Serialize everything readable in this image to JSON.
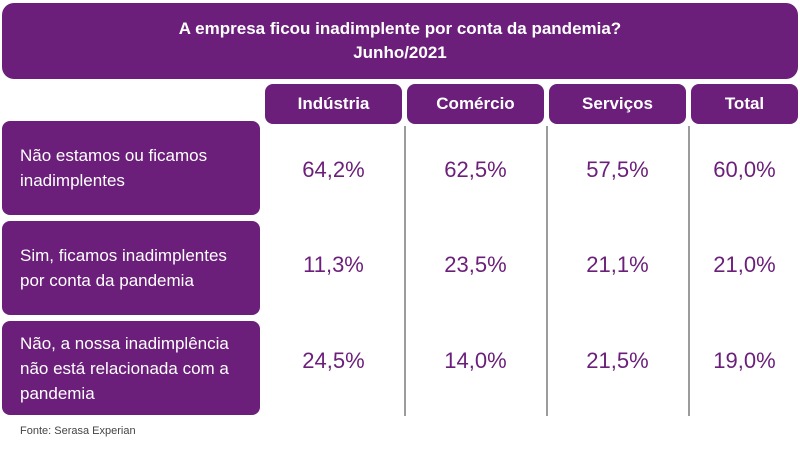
{
  "chart_data": {
    "type": "table",
    "title": "A empresa ficou inadimplente por conta da pandemia?",
    "subtitle": "Junho/2021",
    "columns": [
      "Indústria",
      "Comércio",
      "Serviços",
      "Total"
    ],
    "rows": [
      {
        "label": "Não estamos ou ficamos inadimplentes",
        "values": [
          "64,2%",
          "62,5%",
          "57,5%",
          "60,0%"
        ]
      },
      {
        "label": "Sim, ficamos inadimplentes por conta da pandemia",
        "values": [
          "11,3%",
          "23,5%",
          "21,1%",
          "21,0%"
        ]
      },
      {
        "label": "Não, a nossa inadimplência não está relacionada com a pandemia",
        "values": [
          "24,5%",
          "14,0%",
          "21,5%",
          "19,0%"
        ]
      }
    ],
    "source": "Fonte: Serasa Experian"
  },
  "colors": {
    "accent": "#6b1f7a",
    "divider": "#9b9b9b"
  }
}
